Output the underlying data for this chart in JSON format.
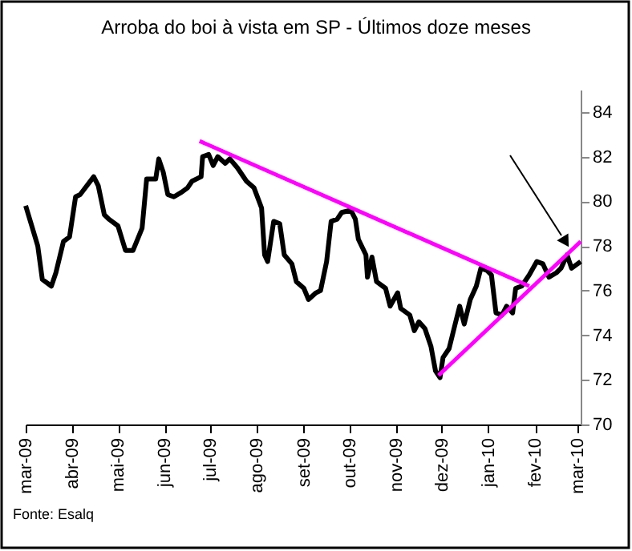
{
  "chart_data": {
    "type": "line",
    "title": "Arroba do boi  à vista em SP - Últimos doze meses",
    "annotations": [
      "Fonte: Esalq"
    ],
    "marker": "none",
    "line_style": "solid",
    "xlim": [
      "2009-03-01",
      "2010-03-03"
    ],
    "ylim": [
      70,
      85
    ],
    "yticks": [
      70,
      72,
      74,
      76,
      78,
      80,
      82,
      84
    ],
    "xticks": [
      {
        "value": "2009-03-01",
        "label": "mar-09"
      },
      {
        "value": "2009-04-01",
        "label": "abr-09"
      },
      {
        "value": "2009-05-01",
        "label": "mai-09"
      },
      {
        "value": "2009-06-01",
        "label": "jun-09"
      },
      {
        "value": "2009-07-01",
        "label": "jul-09"
      },
      {
        "value": "2009-08-01",
        "label": "ago-09"
      },
      {
        "value": "2009-09-01",
        "label": "set-09"
      },
      {
        "value": "2009-10-01",
        "label": "out-09"
      },
      {
        "value": "2009-11-01",
        "label": "nov-09"
      },
      {
        "value": "2009-12-01",
        "label": "dez-09"
      },
      {
        "value": "2010-01-01",
        "label": "jan-10"
      },
      {
        "value": "2010-02-01",
        "label": "fev-10"
      },
      {
        "value": "2010-03-01",
        "label": "mar-10"
      }
    ],
    "series": [
      {
        "color": "#000000",
        "x": [
          "2009-03-01",
          "2009-03-05",
          "2009-03-09",
          "2009-03-12",
          "2009-03-18",
          "2009-03-21",
          "2009-03-26",
          "2009-03-30",
          "2009-04-03",
          "2009-04-06",
          "2009-04-15",
          "2009-04-18",
          "2009-04-22",
          "2009-04-25",
          "2009-05-01",
          "2009-05-06",
          "2009-05-11",
          "2009-05-17",
          "2009-05-20",
          "2009-05-26",
          "2009-05-28",
          "2009-05-31",
          "2009-06-03",
          "2009-06-07",
          "2009-06-12",
          "2009-06-16",
          "2009-06-19",
          "2009-06-25",
          "2009-06-26",
          "2009-06-30",
          "2009-07-03",
          "2009-07-06",
          "2009-07-11",
          "2009-07-14",
          "2009-07-19",
          "2009-07-25",
          "2009-07-30",
          "2009-08-04",
          "2009-08-06",
          "2009-08-08",
          "2009-08-12",
          "2009-08-16",
          "2009-08-19",
          "2009-08-24",
          "2009-08-27",
          "2009-09-01",
          "2009-09-04",
          "2009-09-09",
          "2009-09-12",
          "2009-09-16",
          "2009-09-19",
          "2009-09-23",
          "2009-09-26",
          "2009-10-02",
          "2009-10-05",
          "2009-10-07",
          "2009-10-12",
          "2009-10-13",
          "2009-10-16",
          "2009-10-19",
          "2009-10-25",
          "2009-10-28",
          "2009-11-02",
          "2009-11-04",
          "2009-11-10",
          "2009-11-13",
          "2009-11-16",
          "2009-11-20",
          "2009-11-24",
          "2009-11-27",
          "2009-11-30",
          "2009-12-02",
          "2009-12-06",
          "2009-12-10",
          "2009-12-13",
          "2009-12-16",
          "2009-12-20",
          "2009-12-24",
          "2009-12-27",
          "2009-12-31",
          "2010-01-03",
          "2010-01-06",
          "2010-01-10",
          "2010-01-13",
          "2010-01-17",
          "2010-01-19",
          "2010-01-23",
          "2010-01-28",
          "2010-02-02",
          "2010-02-06",
          "2010-02-10",
          "2010-02-15",
          "2010-02-18",
          "2010-02-22",
          "2010-02-25",
          "2010-03-01",
          "2010-03-03"
        ],
        "values": [
          79.8,
          78.9,
          78.0,
          76.5,
          76.2,
          76.8,
          78.2,
          78.4,
          80.2,
          80.3,
          81.1,
          80.7,
          79.4,
          79.2,
          78.9,
          77.8,
          77.8,
          78.8,
          81.0,
          81.0,
          81.9,
          81.3,
          80.3,
          80.2,
          80.4,
          80.6,
          80.9,
          81.1,
          82.0,
          82.1,
          81.6,
          82.0,
          81.7,
          81.9,
          81.5,
          80.9,
          80.6,
          79.7,
          77.6,
          77.3,
          79.1,
          79.0,
          77.6,
          77.2,
          76.4,
          76.1,
          75.6,
          75.9,
          76.0,
          77.3,
          79.1,
          79.2,
          79.5,
          79.6,
          79.2,
          78.3,
          77.6,
          76.6,
          77.5,
          76.4,
          76.1,
          75.3,
          75.9,
          75.2,
          74.9,
          74.2,
          74.6,
          74.3,
          73.5,
          72.4,
          72.1,
          73.0,
          73.4,
          74.5,
          75.3,
          74.5,
          75.6,
          76.2,
          77.0,
          76.9,
          76.7,
          75.0,
          74.9,
          75.3,
          75.0,
          76.1,
          76.2,
          76.7,
          77.3,
          77.2,
          76.6,
          76.8,
          77.0,
          77.6,
          77.0,
          77.2,
          77.3
        ]
      },
      {
        "type": "line",
        "color": "#ff00ff",
        "x": [
          "2009-06-24",
          "2010-01-28"
        ],
        "values": [
          82.7,
          76.2
        ]
      },
      {
        "type": "line",
        "color": "#ff00ff",
        "x": [
          "2009-11-29",
          "2010-03-03"
        ],
        "values": [
          72.2,
          78.2
        ]
      }
    ]
  }
}
